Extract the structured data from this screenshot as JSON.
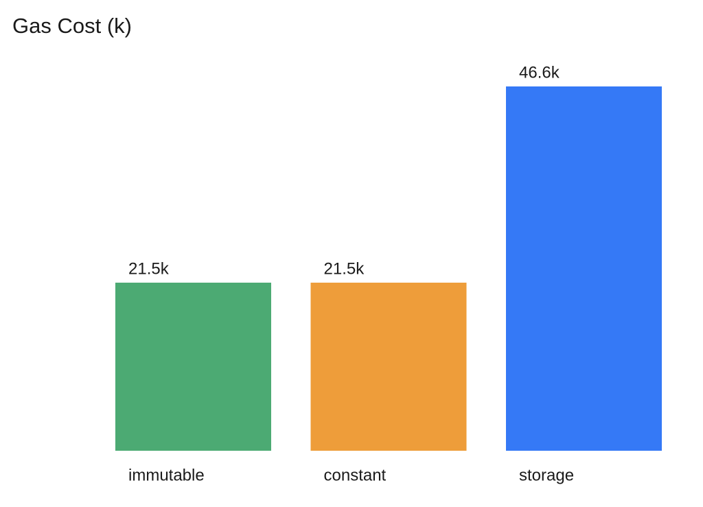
{
  "chart_data": {
    "type": "bar",
    "title": "Gas Cost (k)",
    "categories": [
      "immutable",
      "constant",
      "storage"
    ],
    "values": [
      21.5,
      21.5,
      46.6
    ],
    "value_labels": [
      "21.5k",
      "21.5k",
      "46.6k"
    ],
    "colors": [
      "#4caa73",
      "#ee9d3a",
      "#3579f6"
    ]
  }
}
